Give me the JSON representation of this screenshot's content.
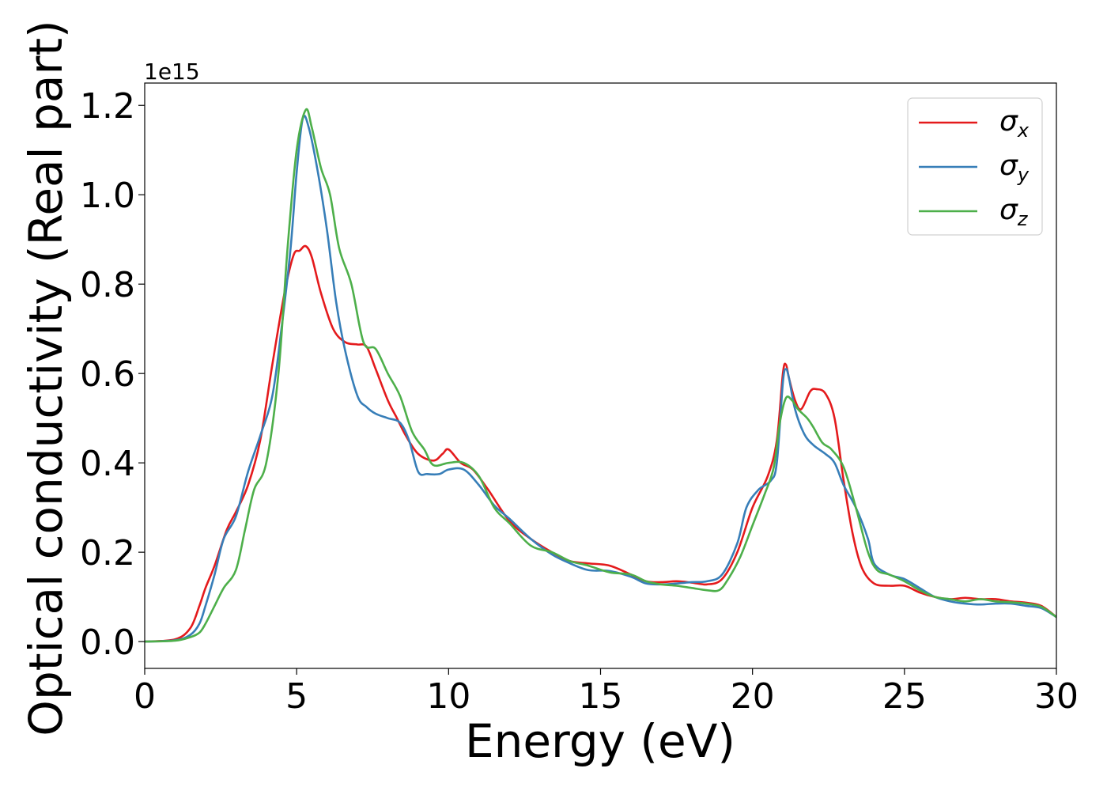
{
  "chart_data": {
    "type": "line",
    "xlabel": "Energy (eV)",
    "ylabel": "Optical conductivity (Real part)",
    "y_offset_label": "1e15",
    "xlim": [
      0,
      30
    ],
    "ylim": [
      -0.06,
      1.25
    ],
    "xticks": [
      0,
      5,
      10,
      15,
      20,
      25,
      30
    ],
    "xtick_labels": [
      "0",
      "5",
      "10",
      "15",
      "20",
      "25",
      "30"
    ],
    "yticks": [
      0.0,
      0.2,
      0.4,
      0.6,
      0.8,
      1.0,
      1.2
    ],
    "ytick_labels": [
      "0.0",
      "0.2",
      "0.4",
      "0.6",
      "0.8",
      "1.0",
      "1.2"
    ],
    "grid": false,
    "legend_position": "top-right",
    "series": [
      {
        "name": "σx",
        "symbol": "σ",
        "subscript": "x",
        "color": "#e41a1c",
        "x": [
          0,
          1,
          1.5,
          1.8,
          2.0,
          2.3,
          2.7,
          3.0,
          3.4,
          3.8,
          4.2,
          4.6,
          4.9,
          5.1,
          5.3,
          5.5,
          5.8,
          6.2,
          6.6,
          7.0,
          7.3,
          7.6,
          8.0,
          8.3,
          8.6,
          9.0,
          9.5,
          9.8,
          10.0,
          10.4,
          10.8,
          11.3,
          12.0,
          12.7,
          13.4,
          14.0,
          14.6,
          15.3,
          16.0,
          16.5,
          17.0,
          17.5,
          18.0,
          18.5,
          19.0,
          19.5,
          20.0,
          20.5,
          20.8,
          21.0,
          21.1,
          21.2,
          21.4,
          21.6,
          21.9,
          22.1,
          22.4,
          22.7,
          23.0,
          23.3,
          23.6,
          24.0,
          24.5,
          25.0,
          25.5,
          26.0,
          26.5,
          27.0,
          27.5,
          28.0,
          28.5,
          29.0,
          29.5,
          30.0
        ],
        "values": [
          0.0,
          0.005,
          0.03,
          0.08,
          0.12,
          0.17,
          0.25,
          0.29,
          0.35,
          0.45,
          0.62,
          0.78,
          0.865,
          0.875,
          0.885,
          0.86,
          0.78,
          0.7,
          0.67,
          0.665,
          0.66,
          0.61,
          0.54,
          0.5,
          0.46,
          0.42,
          0.405,
          0.42,
          0.43,
          0.4,
          0.385,
          0.34,
          0.27,
          0.23,
          0.2,
          0.18,
          0.175,
          0.17,
          0.15,
          0.135,
          0.133,
          0.135,
          0.132,
          0.128,
          0.14,
          0.2,
          0.3,
          0.37,
          0.45,
          0.6,
          0.62,
          0.59,
          0.54,
          0.52,
          0.56,
          0.565,
          0.555,
          0.5,
          0.36,
          0.24,
          0.165,
          0.13,
          0.125,
          0.125,
          0.11,
          0.1,
          0.095,
          0.098,
          0.095,
          0.095,
          0.09,
          0.087,
          0.08,
          0.055
        ]
      },
      {
        "name": "σy",
        "symbol": "σ",
        "subscript": "y",
        "color": "#377eb8",
        "x": [
          0,
          1,
          1.5,
          1.8,
          2.0,
          2.3,
          2.6,
          3.0,
          3.4,
          3.8,
          4.2,
          4.5,
          4.8,
          5.0,
          5.2,
          5.4,
          5.7,
          6.0,
          6.3,
          6.6,
          7.0,
          7.3,
          7.6,
          8.0,
          8.4,
          8.7,
          9.0,
          9.3,
          9.7,
          10.0,
          10.5,
          11.0,
          11.5,
          12.0,
          12.7,
          13.4,
          14.0,
          14.6,
          15.3,
          16.0,
          16.5,
          17.0,
          17.5,
          18.0,
          18.5,
          19.0,
          19.5,
          19.8,
          20.2,
          20.6,
          20.8,
          21.0,
          21.1,
          21.2,
          21.4,
          21.7,
          22.0,
          22.4,
          22.7,
          23.0,
          23.4,
          23.8,
          24.0,
          24.5,
          25.0,
          25.5,
          26.0,
          26.5,
          27.0,
          27.5,
          28.0,
          28.5,
          29.0,
          29.5,
          30.0
        ],
        "values": [
          0.0,
          0.003,
          0.015,
          0.04,
          0.08,
          0.15,
          0.23,
          0.28,
          0.38,
          0.46,
          0.55,
          0.7,
          0.88,
          1.05,
          1.17,
          1.15,
          1.05,
          0.92,
          0.76,
          0.65,
          0.55,
          0.525,
          0.51,
          0.5,
          0.49,
          0.45,
          0.38,
          0.375,
          0.375,
          0.385,
          0.385,
          0.35,
          0.305,
          0.275,
          0.23,
          0.195,
          0.175,
          0.16,
          0.158,
          0.145,
          0.13,
          0.128,
          0.13,
          0.133,
          0.135,
          0.15,
          0.22,
          0.3,
          0.34,
          0.36,
          0.4,
          0.58,
          0.61,
          0.59,
          0.52,
          0.465,
          0.44,
          0.42,
          0.4,
          0.35,
          0.3,
          0.23,
          0.175,
          0.15,
          0.14,
          0.12,
          0.1,
          0.09,
          0.085,
          0.083,
          0.085,
          0.085,
          0.08,
          0.075,
          0.055
        ]
      },
      {
        "name": "σz",
        "symbol": "σ",
        "subscript": "z",
        "color": "#4daf4a",
        "x": [
          0,
          1,
          1.5,
          1.8,
          2.0,
          2.3,
          2.6,
          3.0,
          3.3,
          3.6,
          4.0,
          4.4,
          4.7,
          5.0,
          5.3,
          5.5,
          5.8,
          6.1,
          6.4,
          6.8,
          7.2,
          7.6,
          8.0,
          8.4,
          8.8,
          9.2,
          9.5,
          10.0,
          10.5,
          11.0,
          11.5,
          12.0,
          12.7,
          13.4,
          14.0,
          14.6,
          15.3,
          16.0,
          16.5,
          17.0,
          17.5,
          18.0,
          18.5,
          18.9,
          19.2,
          19.6,
          20.0,
          20.4,
          20.7,
          20.9,
          21.1,
          21.3,
          21.5,
          21.8,
          22.0,
          22.3,
          22.6,
          23.0,
          23.4,
          23.8,
          24.1,
          24.5,
          25.0,
          25.5,
          26.0,
          26.5,
          27.0,
          27.5,
          28.0,
          28.5,
          29.0,
          29.5,
          30.0
        ],
        "values": [
          0.0,
          0.002,
          0.01,
          0.02,
          0.04,
          0.08,
          0.12,
          0.16,
          0.25,
          0.34,
          0.4,
          0.6,
          0.88,
          1.1,
          1.19,
          1.15,
          1.06,
          1.0,
          0.88,
          0.8,
          0.67,
          0.655,
          0.6,
          0.55,
          0.47,
          0.43,
          0.395,
          0.4,
          0.4,
          0.37,
          0.3,
          0.265,
          0.215,
          0.2,
          0.18,
          0.17,
          0.155,
          0.15,
          0.135,
          0.128,
          0.125,
          0.12,
          0.115,
          0.115,
          0.14,
          0.19,
          0.26,
          0.33,
          0.39,
          0.49,
          0.545,
          0.54,
          0.52,
          0.5,
          0.48,
          0.445,
          0.43,
          0.39,
          0.3,
          0.2,
          0.16,
          0.15,
          0.135,
          0.115,
          0.1,
          0.095,
          0.09,
          0.095,
          0.09,
          0.088,
          0.085,
          0.078,
          0.055
        ]
      }
    ]
  }
}
